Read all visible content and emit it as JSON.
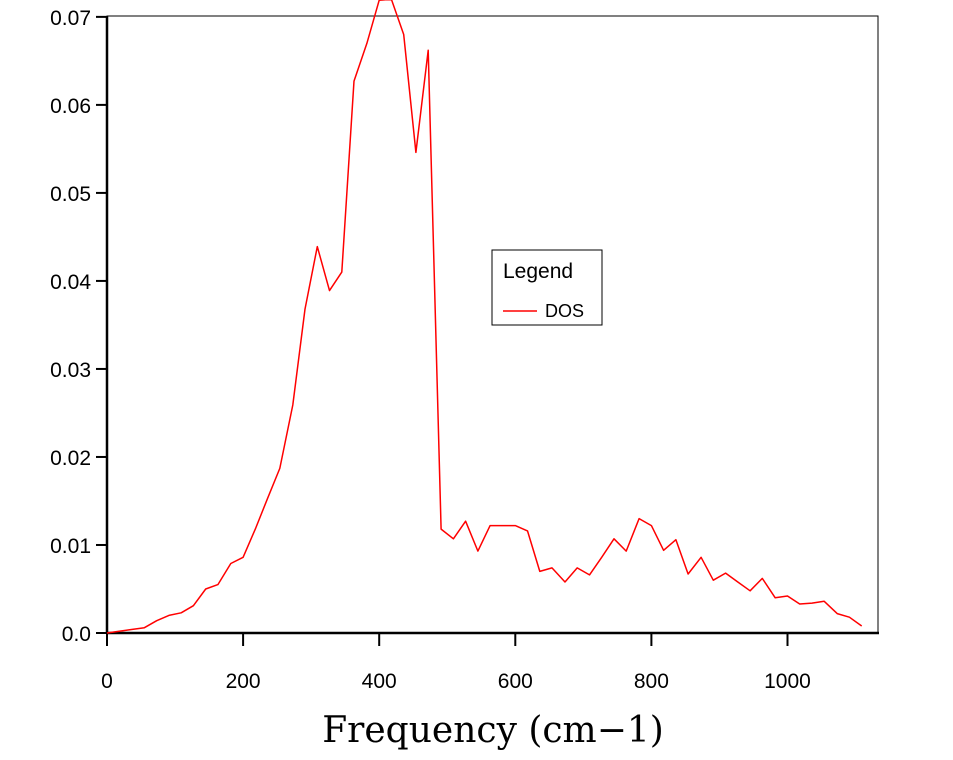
{
  "chart_data": {
    "type": "line",
    "title": "",
    "xlabel": "Frequency (cm−1)",
    "ylabel": "",
    "xlim": [
      0,
      1133
    ],
    "ylim": [
      0,
      0.0701
    ],
    "x_ticks": [
      0,
      200,
      400,
      600,
      800,
      1000
    ],
    "x_tick_labels": [
      "0",
      "200",
      "400",
      "600",
      "800",
      "1000"
    ],
    "y_ticks": [
      0,
      0.01,
      0.02,
      0.03,
      0.04,
      0.05,
      0.06,
      0.07
    ],
    "y_tick_labels": [
      "0.0",
      "0.01",
      "0.02",
      "0.03",
      "0.04",
      "0.05",
      "0.06",
      "0.07"
    ],
    "grid": false,
    "legend": {
      "title": "Legend",
      "position": "center-right"
    },
    "series": [
      {
        "name": "DOS",
        "color": "#ff0000",
        "x": [
          0,
          18,
          36,
          55,
          73,
          91,
          109,
          127,
          145,
          163,
          182,
          200,
          218,
          236,
          254,
          273,
          291,
          309,
          327,
          345,
          363,
          382,
          400,
          418,
          436,
          454,
          472,
          491,
          509,
          527,
          545,
          563,
          582,
          600,
          618,
          636,
          654,
          673,
          691,
          709,
          727,
          745,
          763,
          782,
          800,
          818,
          836,
          854,
          873,
          891,
          909,
          927,
          945,
          963,
          982,
          1000,
          1018,
          1036,
          1054,
          1073,
          1091,
          1109
        ],
        "y": [
          0.0,
          0.0002,
          0.0004,
          0.0006,
          0.0014,
          0.002,
          0.0023,
          0.0031,
          0.005,
          0.0055,
          0.0079,
          0.0086,
          0.0118,
          0.0153,
          0.0187,
          0.0259,
          0.0368,
          0.0439,
          0.0389,
          0.041,
          0.0627,
          0.067,
          0.0719,
          0.072,
          0.068,
          0.0546,
          0.0662,
          0.0118,
          0.0107,
          0.0127,
          0.0093,
          0.0122,
          0.0122,
          0.0122,
          0.0116,
          0.007,
          0.0074,
          0.0058,
          0.0074,
          0.0066,
          0.0086,
          0.0107,
          0.0093,
          0.013,
          0.0122,
          0.0094,
          0.0106,
          0.0067,
          0.0086,
          0.006,
          0.0068,
          0.0058,
          0.0048,
          0.0062,
          0.004,
          0.0042,
          0.0033,
          0.0034,
          0.0036,
          0.0022,
          0.0018,
          0.0008
        ]
      }
    ]
  }
}
